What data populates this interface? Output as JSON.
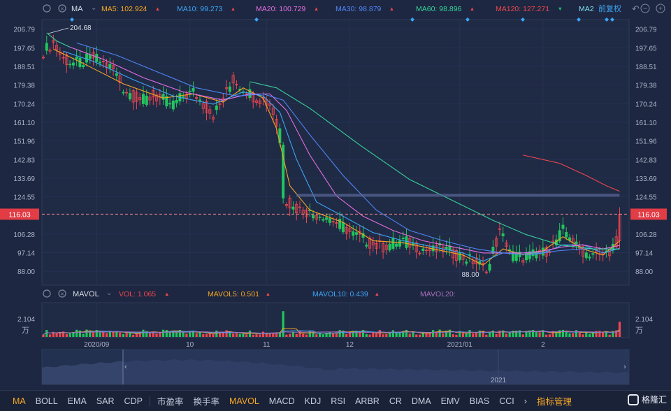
{
  "toolbar": {
    "label": "MA",
    "items": [
      {
        "label": "MA5: 102.924",
        "arrow": "▲",
        "color": "#f6a623"
      },
      {
        "label": "MA10: 99.273",
        "arrow": "▲",
        "color": "#3ea4f5"
      },
      {
        "label": "MA20: 100.729",
        "arrow": "▲",
        "color": "#e56ee0"
      },
      {
        "label": "MA30: 98.879",
        "arrow": "▲",
        "color": "#4f86f7"
      },
      {
        "label": "MA60: 98.896",
        "arrow": "▲",
        "color": "#37d39a"
      },
      {
        "label": "MA120: 127.271",
        "arrow": "▼",
        "color": "#f0464e"
      },
      {
        "label": "MA2",
        "arrow": "",
        "color": "#7fe0f2"
      }
    ],
    "adjust_label": "前复权"
  },
  "vol_toolbar": {
    "label": "MAVOL",
    "items": [
      {
        "label": "VOL: 1.065",
        "arrow": "▲",
        "color": "#f0464e"
      },
      {
        "label": "MAVOL5: 0.501",
        "arrow": "▲",
        "color": "#f6a623"
      },
      {
        "label": "MAVOL10: 0.439",
        "arrow": "▲",
        "color": "#3ea4f5"
      },
      {
        "label": "MAVOL20:",
        "arrow": "",
        "color": "#a66fb8"
      }
    ]
  },
  "chart_data": {
    "type": "candlestick",
    "price_axis": {
      "ticks": [
        206.79,
        197.65,
        188.51,
        179.38,
        170.24,
        161.1,
        151.96,
        142.83,
        133.69,
        124.55,
        106.28,
        97.14,
        88.0
      ],
      "range": [
        81.2,
        211.5
      ]
    },
    "current_price": "116.03",
    "annotations": {
      "high": "204.68",
      "low": "88.00"
    },
    "volume_axis": {
      "tick": "2.104",
      "unit": "万"
    },
    "x_labels": [
      "2020/09",
      "10",
      "11",
      "12",
      "2021/01",
      "2"
    ],
    "navigator_label": "2021",
    "colors": {
      "up": "#f0464e",
      "down": "#22c55e",
      "background": "#1d2741"
    },
    "price_path": [
      [
        0,
        196
      ],
      [
        3,
        200
      ],
      [
        6,
        192
      ],
      [
        9,
        190
      ],
      [
        12,
        191
      ],
      [
        15,
        193
      ],
      [
        18,
        190
      ],
      [
        21,
        187
      ],
      [
        24,
        178
      ],
      [
        27,
        174
      ],
      [
        30,
        172
      ],
      [
        33,
        174
      ],
      [
        36,
        172
      ],
      [
        39,
        170
      ],
      [
        42,
        174
      ],
      [
        45,
        176
      ],
      [
        48,
        170
      ],
      [
        51,
        165
      ],
      [
        54,
        172
      ],
      [
        57,
        182
      ],
      [
        60,
        178
      ],
      [
        63,
        174
      ],
      [
        66,
        172
      ],
      [
        68,
        170
      ],
      [
        69,
        166
      ],
      [
        70,
        160
      ],
      [
        71,
        150
      ],
      [
        72,
        128
      ],
      [
        73,
        123
      ],
      [
        75,
        119
      ],
      [
        78,
        118
      ],
      [
        81,
        116
      ],
      [
        84,
        116
      ],
      [
        87,
        113
      ],
      [
        90,
        110
      ],
      [
        93,
        106
      ],
      [
        96,
        104
      ],
      [
        99,
        101
      ],
      [
        102,
        100
      ],
      [
        105,
        102
      ],
      [
        108,
        103
      ],
      [
        111,
        101
      ],
      [
        114,
        99
      ],
      [
        117,
        98
      ],
      [
        120,
        99
      ],
      [
        123,
        97
      ],
      [
        126,
        95
      ],
      [
        129,
        93
      ],
      [
        132,
        90
      ],
      [
        134,
        91
      ],
      [
        135,
        98
      ],
      [
        137,
        107
      ],
      [
        139,
        102
      ],
      [
        141,
        96
      ],
      [
        144,
        95
      ],
      [
        147,
        96
      ],
      [
        150,
        97
      ],
      [
        153,
        101
      ],
      [
        156,
        108
      ],
      [
        158,
        106
      ],
      [
        160,
        100
      ],
      [
        163,
        97
      ],
      [
        165,
        97
      ],
      [
        167,
        95
      ],
      [
        169,
        97
      ],
      [
        171,
        100
      ],
      [
        173,
        116
      ]
    ],
    "ma_series": [
      {
        "name": "MA5",
        "color": "#f6a623",
        "points": [
          [
            3,
            197
          ],
          [
            12,
            190
          ],
          [
            24,
            180
          ],
          [
            36,
            173
          ],
          [
            45,
            175
          ],
          [
            54,
            171
          ],
          [
            60,
            178
          ],
          [
            66,
            173
          ],
          [
            70,
            158
          ],
          [
            74,
            130
          ],
          [
            80,
            118
          ],
          [
            90,
            112
          ],
          [
            99,
            103
          ],
          [
            108,
            102
          ],
          [
            117,
            99
          ],
          [
            126,
            96
          ],
          [
            132,
            91
          ],
          [
            138,
            99
          ],
          [
            144,
            96
          ],
          [
            150,
            98
          ],
          [
            156,
            105
          ],
          [
            162,
            99
          ],
          [
            168,
            96
          ],
          [
            173,
            102.9
          ]
        ]
      },
      {
        "name": "MA10",
        "color": "#3ea4f5",
        "points": [
          [
            6,
            196
          ],
          [
            15,
            191
          ],
          [
            27,
            182
          ],
          [
            39,
            174
          ],
          [
            51,
            170
          ],
          [
            60,
            176
          ],
          [
            66,
            174
          ],
          [
            71,
            166
          ],
          [
            76,
            143
          ],
          [
            82,
            122
          ],
          [
            90,
            115
          ],
          [
            99,
            107
          ],
          [
            108,
            103
          ],
          [
            117,
            100
          ],
          [
            126,
            97
          ],
          [
            132,
            93
          ],
          [
            138,
            97
          ],
          [
            144,
            97
          ],
          [
            150,
            97
          ],
          [
            156,
            101
          ],
          [
            162,
            101
          ],
          [
            168,
            97
          ],
          [
            173,
            99.3
          ]
        ]
      },
      {
        "name": "MA20",
        "color": "#e56ee0",
        "points": [
          [
            8,
            198
          ],
          [
            18,
            192
          ],
          [
            30,
            183
          ],
          [
            42,
            176
          ],
          [
            54,
            172
          ],
          [
            62,
            175
          ],
          [
            68,
            175
          ],
          [
            73,
            167
          ],
          [
            80,
            145
          ],
          [
            88,
            125
          ],
          [
            96,
            115
          ],
          [
            105,
            108
          ],
          [
            114,
            103
          ],
          [
            123,
            100
          ],
          [
            132,
            97
          ],
          [
            138,
            97
          ],
          [
            144,
            97
          ],
          [
            150,
            98
          ],
          [
            156,
            100
          ],
          [
            162,
            101
          ],
          [
            168,
            99
          ],
          [
            173,
            100.7
          ]
        ]
      },
      {
        "name": "MA30",
        "color": "#4f86f7",
        "points": [
          [
            10,
            200
          ],
          [
            22,
            194
          ],
          [
            34,
            186
          ],
          [
            46,
            178
          ],
          [
            58,
            174
          ],
          [
            66,
            175
          ],
          [
            72,
            172
          ],
          [
            80,
            155
          ],
          [
            90,
            135
          ],
          [
            100,
            118
          ],
          [
            110,
            108
          ],
          [
            120,
            103
          ],
          [
            130,
            99
          ],
          [
            138,
            97
          ],
          [
            146,
            96
          ],
          [
            154,
            98
          ],
          [
            162,
            99
          ],
          [
            168,
            99
          ],
          [
            173,
            98.9
          ]
        ]
      },
      {
        "name": "MA60",
        "color": "#37d39a",
        "points": [
          [
            1,
            205
          ],
          [
            4,
            201
          ],
          [
            8,
            198
          ]
        ]
      },
      {
        "name": "MA60b",
        "color": "#37d39a",
        "points": [
          [
            62,
            181
          ],
          [
            70,
            178
          ],
          [
            80,
            168
          ],
          [
            95,
            150
          ],
          [
            110,
            133
          ],
          [
            125,
            121
          ],
          [
            135,
            113
          ],
          [
            145,
            106
          ],
          [
            155,
            101
          ],
          [
            165,
            99
          ],
          [
            173,
            98.9
          ]
        ]
      },
      {
        "name": "MA120",
        "color": "#f0464e",
        "points": [
          [
            144,
            145
          ],
          [
            155,
            141
          ],
          [
            163,
            135
          ],
          [
            169,
            130
          ],
          [
            173,
            127.3
          ]
        ]
      }
    ]
  },
  "indicator_tabs": [
    {
      "label": "MA",
      "active": true
    },
    {
      "label": "BOLL",
      "active": false
    },
    {
      "label": "EMA",
      "active": false
    },
    {
      "label": "SAR",
      "active": false
    },
    {
      "label": "CDP",
      "active": false
    },
    {
      "label": "市盈率",
      "active": false
    },
    {
      "label": "换手率",
      "active": false
    },
    {
      "label": "MAVOL",
      "active": true
    },
    {
      "label": "MACD",
      "active": false
    },
    {
      "label": "KDJ",
      "active": false
    },
    {
      "label": "RSI",
      "active": false
    },
    {
      "label": "ARBR",
      "active": false
    },
    {
      "label": "CR",
      "active": false
    },
    {
      "label": "DMA",
      "active": false
    },
    {
      "label": "EMV",
      "active": false
    },
    {
      "label": "BIAS",
      "active": false
    },
    {
      "label": "CCI",
      "active": false
    }
  ],
  "indicator_manage": "指标管理",
  "brand": "格隆汇"
}
